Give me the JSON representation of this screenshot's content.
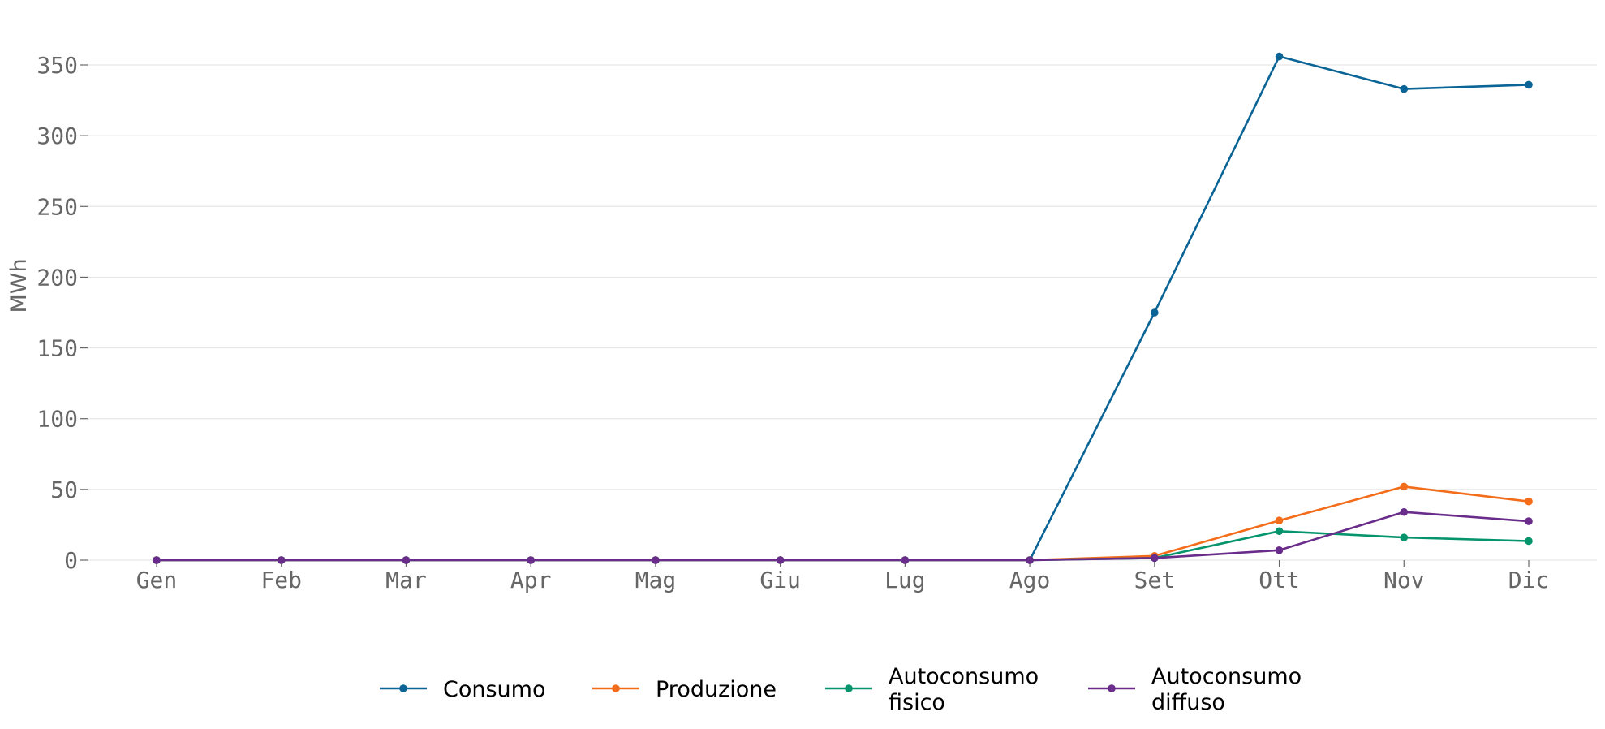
{
  "chart_data": {
    "type": "line",
    "categories": [
      "Gen",
      "Feb",
      "Mar",
      "Apr",
      "Mag",
      "Giu",
      "Lug",
      "Ago",
      "Set",
      "Ott",
      "Nov",
      "Dic"
    ],
    "ylabel": "MWh",
    "xlabel": "",
    "ylim": [
      0,
      375
    ],
    "yticks": [
      0,
      50,
      100,
      150,
      200,
      250,
      300,
      350
    ],
    "grid": "horizontal",
    "legend_position": "bottom",
    "series": [
      {
        "name": "Consumo",
        "color": "#0a6496",
        "values": [
          0,
          0,
          0,
          0,
          0,
          0,
          0,
          0,
          175,
          356,
          333,
          336
        ]
      },
      {
        "name": "Produzione",
        "color": "#f36c1a",
        "values": [
          0,
          0,
          0,
          0,
          0,
          0,
          0,
          0,
          3,
          28,
          52,
          41.5
        ]
      },
      {
        "name": "Autoconsumo fisico",
        "color": "#05946c",
        "values": [
          0,
          0,
          0,
          0,
          0,
          0,
          0,
          0,
          1.5,
          20.5,
          16,
          13.5
        ]
      },
      {
        "name": "Autoconsumo diffuso",
        "color": "#6a2c8a",
        "values": [
          0,
          0,
          0,
          0,
          0,
          0,
          0,
          0,
          1.5,
          7,
          34,
          27.5
        ]
      }
    ]
  }
}
